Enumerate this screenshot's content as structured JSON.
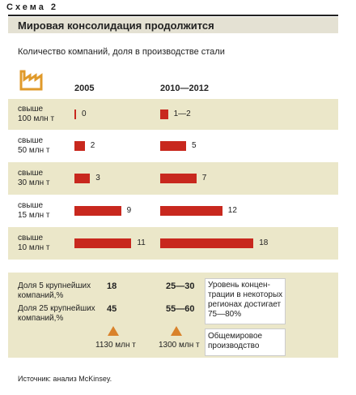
{
  "header": {
    "label": "Схема 2"
  },
  "chart_data": {
    "type": "bar",
    "title": "Мировая консолидация продолжится",
    "subtitle": "Количество компаний, доля в производстве стали",
    "categories": [
      "свыше\n100 млн т",
      "свыше\n50 млн т",
      "свыше\n30 млн т",
      "свыше\n15 млн т",
      "свыше\n10 млн т"
    ],
    "series": [
      {
        "name": "2005",
        "color": "#c8281e",
        "values": [
          0,
          2,
          3,
          9,
          11
        ]
      },
      {
        "name": "2010—2012",
        "color": "#c8281e",
        "values": [
          1.5,
          5,
          7,
          12,
          18
        ],
        "value_labels": [
          "1—2",
          "5",
          "7",
          "12",
          "18"
        ]
      }
    ]
  },
  "shares": {
    "rows": [
      [
        "Доля 5 крупнейших\nкомпаний,%",
        18,
        "25—30"
      ],
      [
        "Доля 25 крупнейших\nкомпаний,%",
        45,
        "55—60"
      ]
    ],
    "note": "Уровень концен-\nтрации в некоторых\nрегионах достигает\n75—80%"
  },
  "production": {
    "values": [
      "1130 млн т",
      "1300 млн т"
    ],
    "label": "Общемировое\nпроизводство"
  },
  "source": "Источник: анализ McKinsey."
}
